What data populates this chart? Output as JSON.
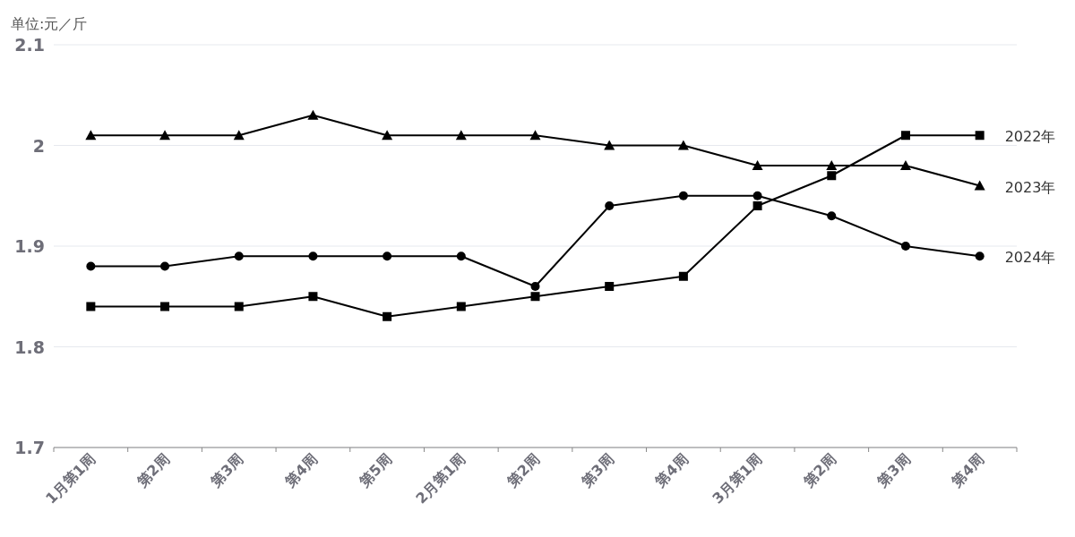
{
  "chart_data": {
    "type": "line",
    "ylabel": "单位:元／斤",
    "categories": [
      "1月第1周",
      "第2周",
      "第3周",
      "第4周",
      "第5周",
      "2月第1周",
      "第2周",
      "第3周",
      "第4周",
      "3月第1周",
      "第2周",
      "第3周",
      "第4周"
    ],
    "series": [
      {
        "name": "2022年",
        "color": "#000000",
        "marker": "square",
        "values": [
          1.84,
          1.84,
          1.84,
          1.85,
          1.83,
          1.84,
          1.85,
          1.86,
          1.87,
          1.94,
          1.97,
          2.01,
          2.01
        ]
      },
      {
        "name": "2023年",
        "color": "#000000",
        "marker": "triangle",
        "values": [
          2.01,
          2.01,
          2.01,
          2.03,
          2.01,
          2.01,
          2.01,
          2.0,
          2.0,
          1.98,
          1.98,
          1.98,
          1.96
        ]
      },
      {
        "name": "2024年",
        "color": "#000000",
        "marker": "circle",
        "values": [
          1.88,
          1.88,
          1.89,
          1.89,
          1.89,
          1.89,
          1.86,
          1.94,
          1.95,
          1.95,
          1.93,
          1.9,
          1.89
        ]
      }
    ],
    "ylim": [
      1.7,
      2.1
    ],
    "yticks": [
      1.7,
      1.8,
      1.9,
      2,
      2.1
    ],
    "grid": "y",
    "line_style": "solid"
  }
}
